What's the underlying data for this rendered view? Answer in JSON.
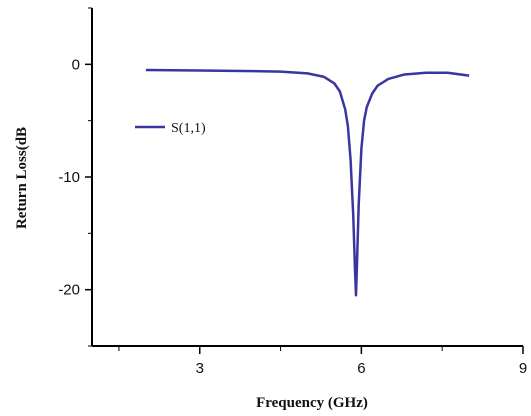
{
  "chart_data": {
    "type": "line",
    "xlabel": "Frequency (GHz)",
    "ylabel": "Return Loss(dB",
    "xlim": [
      1,
      9
    ],
    "ylim": [
      -25,
      5
    ],
    "xticks": [
      3,
      6,
      9
    ],
    "xtick_labels": [
      "3",
      "6",
      "9"
    ],
    "yticks": [
      0,
      -10,
      -20
    ],
    "ytick_labels": [
      "0",
      "-10",
      "-20"
    ],
    "grid": false,
    "legend_position": "left",
    "series": [
      {
        "name": "S(1,1)",
        "color": "#3a36a0",
        "x": [
          2.0,
          3.0,
          4.0,
          4.5,
          5.0,
          5.3,
          5.5,
          5.6,
          5.7,
          5.75,
          5.8,
          5.85,
          5.88,
          5.9,
          5.92,
          5.95,
          6.0,
          6.05,
          6.1,
          6.2,
          6.3,
          6.5,
          6.8,
          7.2,
          7.6,
          8.0
        ],
        "y": [
          -0.5,
          -0.55,
          -0.6,
          -0.65,
          -0.8,
          -1.1,
          -1.7,
          -2.4,
          -4.0,
          -5.5,
          -8.5,
          -13.5,
          -18.0,
          -20.5,
          -17.5,
          -12.5,
          -7.5,
          -5.0,
          -3.8,
          -2.6,
          -1.9,
          -1.3,
          -0.9,
          -0.75,
          -0.75,
          -1.0
        ]
      }
    ]
  }
}
